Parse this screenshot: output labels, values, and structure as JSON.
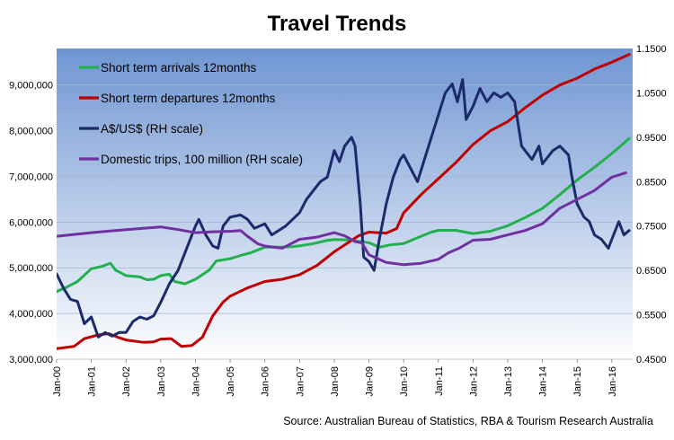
{
  "source_note": "Source: Australian Bureau of Statistics, RBA & Tourism Research Australia",
  "chart_data": {
    "type": "line",
    "title": "Travel Trends",
    "xlabel": "",
    "ylabel": "",
    "x_tick_labels": [
      "Jan-00",
      "Jan-01",
      "Jan-02",
      "Jan-03",
      "Jan-04",
      "Jan-05",
      "Jan-06",
      "Jan-07",
      "Jan-08",
      "Jan-09",
      "Jan-10",
      "Jan-11",
      "Jan-12",
      "Jan-13",
      "Jan-14",
      "Jan-15",
      "Jan-16"
    ],
    "x_range": [
      2000,
      2016.6
    ],
    "y_left": {
      "range": [
        3000000,
        9800000
      ],
      "ticks": [
        3000000,
        4000000,
        5000000,
        6000000,
        7000000,
        8000000,
        9000000
      ],
      "tick_labels": [
        "3,000,000",
        "4,000,000",
        "5,000,000",
        "6,000,000",
        "7,000,000",
        "8,000,000",
        "9,000,000"
      ]
    },
    "y_right": {
      "range": [
        0.45,
        1.15
      ],
      "ticks": [
        0.45,
        0.55,
        0.65,
        0.75,
        0.85,
        0.95,
        1.05,
        1.15
      ],
      "tick_labels": [
        "0.4500",
        "0.5500",
        "0.6500",
        "0.7500",
        "0.8500",
        "0.9500",
        "1.0500",
        "1.1500"
      ]
    },
    "grid": "horizontal",
    "legend_position": "top-left",
    "background_gradient": [
      "#6f95d2",
      "#ffffff"
    ],
    "series": [
      {
        "name": "Short term arrivals 12months",
        "axis": "left",
        "color": "#22b14c",
        "points": [
          [
            2000,
            4480000
          ],
          [
            2000.3,
            4580000
          ],
          [
            2000.6,
            4700000
          ],
          [
            2001,
            4980000
          ],
          [
            2001.3,
            5030000
          ],
          [
            2001.55,
            5100000
          ],
          [
            2001.7,
            4950000
          ],
          [
            2002,
            4830000
          ],
          [
            2002.4,
            4800000
          ],
          [
            2002.6,
            4740000
          ],
          [
            2002.8,
            4750000
          ],
          [
            2003,
            4830000
          ],
          [
            2003.25,
            4860000
          ],
          [
            2003.4,
            4700000
          ],
          [
            2003.7,
            4650000
          ],
          [
            2004,
            4750000
          ],
          [
            2004.4,
            4950000
          ],
          [
            2004.6,
            5150000
          ],
          [
            2005,
            5200000
          ],
          [
            2005.3,
            5270000
          ],
          [
            2005.6,
            5330000
          ],
          [
            2006,
            5450000
          ],
          [
            2006.4,
            5450000
          ],
          [
            2006.8,
            5460000
          ],
          [
            2007,
            5480000
          ],
          [
            2007.4,
            5530000
          ],
          [
            2007.8,
            5600000
          ],
          [
            2008,
            5620000
          ],
          [
            2008.4,
            5610000
          ],
          [
            2008.7,
            5580000
          ],
          [
            2009,
            5550000
          ],
          [
            2009.3,
            5450000
          ],
          [
            2009.6,
            5500000
          ],
          [
            2010,
            5530000
          ],
          [
            2010.4,
            5660000
          ],
          [
            2010.8,
            5780000
          ],
          [
            2011,
            5820000
          ],
          [
            2011.5,
            5820000
          ],
          [
            2012,
            5750000
          ],
          [
            2012.5,
            5800000
          ],
          [
            2013,
            5920000
          ],
          [
            2013.5,
            6100000
          ],
          [
            2014,
            6300000
          ],
          [
            2014.5,
            6600000
          ],
          [
            2015,
            6920000
          ],
          [
            2015.5,
            7200000
          ],
          [
            2016,
            7500000
          ],
          [
            2016.5,
            7830000
          ]
        ]
      },
      {
        "name": "Short term departures 12months",
        "axis": "left",
        "color": "#c00000",
        "points": [
          [
            2000,
            3230000
          ],
          [
            2000.5,
            3280000
          ],
          [
            2000.8,
            3450000
          ],
          [
            2001.2,
            3530000
          ],
          [
            2001.5,
            3560000
          ],
          [
            2001.8,
            3470000
          ],
          [
            2002,
            3420000
          ],
          [
            2002.5,
            3370000
          ],
          [
            2002.8,
            3380000
          ],
          [
            2003,
            3440000
          ],
          [
            2003.3,
            3450000
          ],
          [
            2003.6,
            3280000
          ],
          [
            2003.9,
            3300000
          ],
          [
            2004.2,
            3480000
          ],
          [
            2004.5,
            3950000
          ],
          [
            2004.8,
            4250000
          ],
          [
            2005,
            4380000
          ],
          [
            2005.5,
            4560000
          ],
          [
            2006,
            4700000
          ],
          [
            2006.5,
            4750000
          ],
          [
            2007,
            4850000
          ],
          [
            2007.5,
            5050000
          ],
          [
            2008,
            5350000
          ],
          [
            2008.5,
            5600000
          ],
          [
            2008.7,
            5700000
          ],
          [
            2009,
            5780000
          ],
          [
            2009.5,
            5760000
          ],
          [
            2009.8,
            5860000
          ],
          [
            2010,
            6200000
          ],
          [
            2010.5,
            6600000
          ],
          [
            2011,
            6950000
          ],
          [
            2011.5,
            7300000
          ],
          [
            2012,
            7700000
          ],
          [
            2012.5,
            8000000
          ],
          [
            2013,
            8200000
          ],
          [
            2013.5,
            8500000
          ],
          [
            2014,
            8780000
          ],
          [
            2014.5,
            9000000
          ],
          [
            2015,
            9150000
          ],
          [
            2015.5,
            9350000
          ],
          [
            2016,
            9500000
          ],
          [
            2016.5,
            9670000
          ]
        ]
      },
      {
        "name": "A$/US$ (RH scale)",
        "axis": "right",
        "color": "#1b2a6b",
        "points": [
          [
            2000,
            0.642
          ],
          [
            2000.2,
            0.61
          ],
          [
            2000.4,
            0.585
          ],
          [
            2000.6,
            0.58
          ],
          [
            2000.8,
            0.53
          ],
          [
            2001,
            0.545
          ],
          [
            2001.2,
            0.5
          ],
          [
            2001.4,
            0.51
          ],
          [
            2001.6,
            0.502
          ],
          [
            2001.8,
            0.51
          ],
          [
            2002,
            0.51
          ],
          [
            2002.2,
            0.535
          ],
          [
            2002.4,
            0.545
          ],
          [
            2002.6,
            0.54
          ],
          [
            2002.8,
            0.548
          ],
          [
            2003,
            0.578
          ],
          [
            2003.25,
            0.62
          ],
          [
            2003.5,
            0.65
          ],
          [
            2003.75,
            0.7
          ],
          [
            2004,
            0.75
          ],
          [
            2004.1,
            0.765
          ],
          [
            2004.3,
            0.73
          ],
          [
            2004.5,
            0.705
          ],
          [
            2004.65,
            0.7
          ],
          [
            2004.8,
            0.75
          ],
          [
            2005,
            0.77
          ],
          [
            2005.3,
            0.775
          ],
          [
            2005.5,
            0.765
          ],
          [
            2005.7,
            0.745
          ],
          [
            2006,
            0.755
          ],
          [
            2006.2,
            0.73
          ],
          [
            2006.4,
            0.74
          ],
          [
            2006.6,
            0.75
          ],
          [
            2006.8,
            0.765
          ],
          [
            2007,
            0.78
          ],
          [
            2007.2,
            0.81
          ],
          [
            2007.4,
            0.83
          ],
          [
            2007.6,
            0.85
          ],
          [
            2007.8,
            0.86
          ],
          [
            2007.9,
            0.89
          ],
          [
            2008,
            0.92
          ],
          [
            2008.15,
            0.895
          ],
          [
            2008.3,
            0.93
          ],
          [
            2008.5,
            0.95
          ],
          [
            2008.6,
            0.93
          ],
          [
            2008.75,
            0.8
          ],
          [
            2008.85,
            0.68
          ],
          [
            2009,
            0.67
          ],
          [
            2009.15,
            0.65
          ],
          [
            2009.3,
            0.72
          ],
          [
            2009.5,
            0.8
          ],
          [
            2009.7,
            0.86
          ],
          [
            2009.9,
            0.9
          ],
          [
            2010,
            0.91
          ],
          [
            2010.2,
            0.88
          ],
          [
            2010.4,
            0.85
          ],
          [
            2010.6,
            0.9
          ],
          [
            2010.8,
            0.95
          ],
          [
            2011,
            1.0
          ],
          [
            2011.2,
            1.05
          ],
          [
            2011.4,
            1.07
          ],
          [
            2011.55,
            1.03
          ],
          [
            2011.7,
            1.08
          ],
          [
            2011.8,
            0.99
          ],
          [
            2012,
            1.02
          ],
          [
            2012.2,
            1.06
          ],
          [
            2012.4,
            1.03
          ],
          [
            2012.6,
            1.05
          ],
          [
            2012.8,
            1.04
          ],
          [
            2013,
            1.05
          ],
          [
            2013.2,
            1.03
          ],
          [
            2013.4,
            0.93
          ],
          [
            2013.7,
            0.9
          ],
          [
            2013.9,
            0.93
          ],
          [
            2014,
            0.89
          ],
          [
            2014.3,
            0.92
          ],
          [
            2014.5,
            0.93
          ],
          [
            2014.75,
            0.91
          ],
          [
            2014.85,
            0.86
          ],
          [
            2015,
            0.8
          ],
          [
            2015.2,
            0.77
          ],
          [
            2015.35,
            0.76
          ],
          [
            2015.5,
            0.73
          ],
          [
            2015.7,
            0.72
          ],
          [
            2015.9,
            0.7
          ],
          [
            2016,
            0.72
          ],
          [
            2016.2,
            0.76
          ],
          [
            2016.35,
            0.73
          ],
          [
            2016.5,
            0.74
          ]
        ]
      },
      {
        "name": "Domestic trips, 100 million (RH scale)",
        "axis": "right",
        "color": "#7030a0",
        "points": [
          [
            2000,
            0.727
          ],
          [
            2001,
            0.735
          ],
          [
            2002,
            0.742
          ],
          [
            2003,
            0.748
          ],
          [
            2003.5,
            0.742
          ],
          [
            2004,
            0.735
          ],
          [
            2004.5,
            0.737
          ],
          [
            2005,
            0.738
          ],
          [
            2005.3,
            0.74
          ],
          [
            2005.5,
            0.727
          ],
          [
            2005.8,
            0.71
          ],
          [
            2006,
            0.705
          ],
          [
            2006.5,
            0.7
          ],
          [
            2006.8,
            0.712
          ],
          [
            2007,
            0.72
          ],
          [
            2007.5,
            0.725
          ],
          [
            2008,
            0.735
          ],
          [
            2008.3,
            0.728
          ],
          [
            2008.6,
            0.715
          ],
          [
            2008.8,
            0.712
          ],
          [
            2009,
            0.685
          ],
          [
            2009.5,
            0.668
          ],
          [
            2010,
            0.663
          ],
          [
            2010.5,
            0.666
          ],
          [
            2011,
            0.675
          ],
          [
            2011.3,
            0.69
          ],
          [
            2011.6,
            0.7
          ],
          [
            2012,
            0.718
          ],
          [
            2012.5,
            0.72
          ],
          [
            2013,
            0.73
          ],
          [
            2013.5,
            0.74
          ],
          [
            2014,
            0.755
          ],
          [
            2014.5,
            0.79
          ],
          [
            2015,
            0.81
          ],
          [
            2015.5,
            0.83
          ],
          [
            2016,
            0.86
          ],
          [
            2016.4,
            0.87
          ]
        ]
      }
    ]
  }
}
